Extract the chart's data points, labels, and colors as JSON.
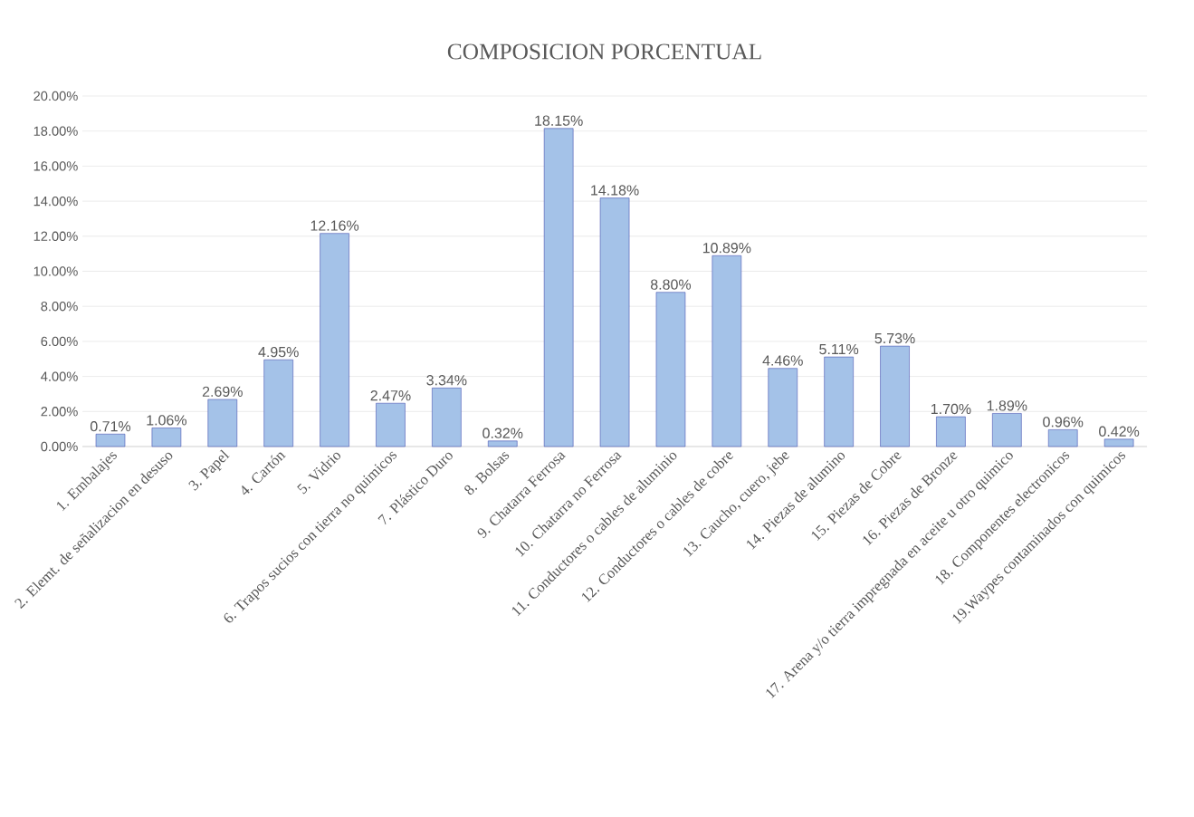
{
  "chart_data": {
    "type": "bar",
    "title": "COMPOSICION PORCENTUAL",
    "categories": [
      "1. Embalajes",
      "2. Elemt. de señalizacion en desuso",
      "3. Papel",
      "4. Cartón",
      "5. Vidrio",
      "6. Trapos sucios con tierra no quimicos",
      "7. Plástico Duro",
      "8. Bolsas",
      "9. Chatarra Ferrosa",
      "10. Chatarra no Ferrosa",
      "11. Conductores o cables de aluminio",
      "12. Conductores o cables de cobre",
      "13. Caucho, cuero, jebe",
      "14. Piezas de alumino",
      "15. Piezas de Cobre",
      "16. Piezas de Bronze",
      "17. Arena y/o tierra impregnada en aceite u otro quimico",
      "18. Componentes electronicos",
      "19.Waypes contaminados con quimicos"
    ],
    "values": [
      0.71,
      1.06,
      2.69,
      4.95,
      12.16,
      2.47,
      3.34,
      0.32,
      18.15,
      14.18,
      8.8,
      10.89,
      4.46,
      5.11,
      5.73,
      1.7,
      1.89,
      0.96,
      0.42
    ],
    "value_labels": [
      "0.71%",
      "1.06%",
      "2.69%",
      "4.95%",
      "12.16%",
      "2.47%",
      "3.34%",
      "0.32%",
      "18.15%",
      "14.18%",
      "8.80%",
      "10.89%",
      "4.46%",
      "5.11%",
      "5.73%",
      "1.70%",
      "1.89%",
      "0.96%",
      "0.42%"
    ],
    "color": "#a4c2e8",
    "ylim": [
      0,
      20
    ],
    "yticks": [
      {
        "value": 0,
        "label": "0.00%"
      },
      {
        "value": 2,
        "label": "2.00%"
      },
      {
        "value": 4,
        "label": "4.00%"
      },
      {
        "value": 6,
        "label": "6.00%"
      },
      {
        "value": 8,
        "label": "8.00%"
      },
      {
        "value": 10,
        "label": "10.00%"
      },
      {
        "value": 12,
        "label": "12.00%"
      },
      {
        "value": 14,
        "label": "14.00%"
      },
      {
        "value": 16,
        "label": "16.00%"
      },
      {
        "value": 18,
        "label": "18.00%"
      },
      {
        "value": 20,
        "label": "20.00%"
      }
    ],
    "grid": "y"
  }
}
